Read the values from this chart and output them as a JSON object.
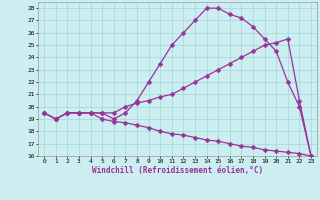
{
  "xlabel": "Windchill (Refroidissement éolien,°C)",
  "xlim": [
    -0.5,
    23.5
  ],
  "ylim": [
    16,
    28.5
  ],
  "xticks": [
    0,
    1,
    2,
    3,
    4,
    5,
    6,
    7,
    8,
    9,
    10,
    11,
    12,
    13,
    14,
    15,
    16,
    17,
    18,
    19,
    20,
    21,
    22,
    23
  ],
  "yticks": [
    16,
    17,
    18,
    19,
    20,
    21,
    22,
    23,
    24,
    25,
    26,
    27,
    28
  ],
  "background_color": "#cceef0",
  "grid_color": "#a0d8d8",
  "line_color": "#993399",
  "line_width": 0.9,
  "marker": "D",
  "marker_size": 2.5,
  "lines": [
    {
      "x": [
        0,
        1,
        2,
        3,
        4,
        5,
        6,
        7,
        8,
        9,
        10,
        11,
        12,
        13,
        14,
        15,
        16,
        17,
        18,
        19,
        20,
        21,
        22,
        23
      ],
      "y": [
        19.5,
        19.0,
        19.5,
        19.5,
        19.5,
        19.5,
        19.0,
        19.5,
        20.5,
        22.0,
        23.5,
        25.0,
        26.0,
        27.0,
        28.0,
        28.0,
        27.5,
        27.2,
        26.5,
        25.5,
        24.5,
        22.0,
        20.0,
        16.0
      ]
    },
    {
      "x": [
        0,
        1,
        2,
        3,
        4,
        5,
        6,
        7,
        8,
        9,
        10,
        11,
        12,
        13,
        14,
        15,
        16,
        17,
        18,
        19,
        20,
        21,
        22,
        23
      ],
      "y": [
        19.5,
        19.0,
        19.5,
        19.5,
        19.5,
        19.5,
        19.5,
        20.0,
        20.3,
        20.5,
        20.8,
        21.0,
        21.5,
        22.0,
        22.5,
        23.0,
        23.5,
        24.0,
        24.5,
        25.0,
        25.2,
        25.5,
        20.5,
        16.0
      ]
    },
    {
      "x": [
        0,
        1,
        2,
        3,
        4,
        5,
        6,
        7,
        8,
        9,
        10,
        11,
        12,
        13,
        14,
        15,
        16,
        17,
        18,
        19,
        20,
        21,
        22,
        23
      ],
      "y": [
        19.5,
        19.0,
        19.5,
        19.5,
        19.5,
        19.0,
        18.8,
        18.7,
        18.5,
        18.3,
        18.0,
        17.8,
        17.7,
        17.5,
        17.3,
        17.2,
        17.0,
        16.8,
        16.7,
        16.5,
        16.4,
        16.3,
        16.2,
        16.0
      ]
    }
  ]
}
